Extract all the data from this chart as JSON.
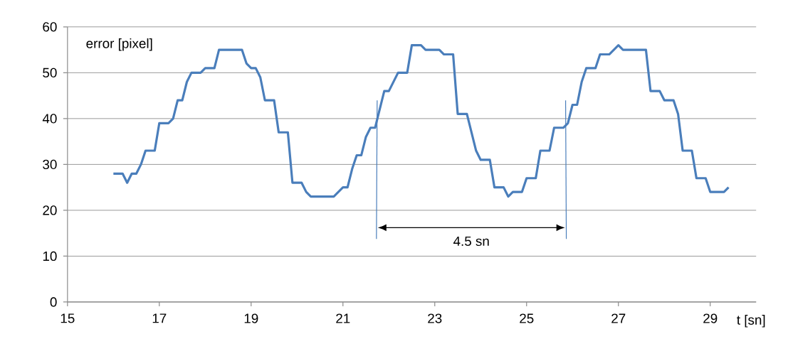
{
  "chart_data": {
    "type": "line",
    "xlabel": "t [sn]",
    "ylabel": "error [pixel]",
    "xlim": [
      15,
      30
    ],
    "xticks": [
      15,
      17,
      19,
      21,
      23,
      25,
      27,
      29
    ],
    "ylim": [
      0,
      60
    ],
    "yticks": [
      0,
      10,
      20,
      30,
      40,
      50,
      60
    ],
    "grid": "y",
    "marker": "none",
    "line_style": "solid",
    "annotations": [
      "4.5 sn"
    ],
    "series": [
      {
        "color": "#4a7ebb",
        "x": [
          16.0,
          16.2,
          16.3,
          16.4,
          16.5,
          16.6,
          16.7,
          16.9,
          17.0,
          17.2,
          17.3,
          17.4,
          17.5,
          17.6,
          17.7,
          17.9,
          18.0,
          18.2,
          18.3,
          18.8,
          18.9,
          19.0,
          19.1,
          19.2,
          19.3,
          19.5,
          19.6,
          19.8,
          19.9,
          20.1,
          20.2,
          20.3,
          20.8,
          21.0,
          21.1,
          21.2,
          21.3,
          21.4,
          21.5,
          21.6,
          21.7,
          21.9,
          22.0,
          22.2,
          22.4,
          22.5,
          22.7,
          22.8,
          23.1,
          23.2,
          23.4,
          23.5,
          23.7,
          23.9,
          24.0,
          24.2,
          24.3,
          24.5,
          24.6,
          24.7,
          24.9,
          25.0,
          25.2,
          25.3,
          25.5,
          25.6,
          25.8,
          25.9,
          26.0,
          26.1,
          26.2,
          26.3,
          26.5,
          26.6,
          26.8,
          27.0,
          27.1,
          27.6,
          27.7,
          27.9,
          28.0,
          28.2,
          28.3,
          28.4,
          28.6,
          28.7,
          28.9,
          29.0,
          29.3,
          29.4
        ],
        "values": [
          28,
          28,
          26,
          28,
          28,
          30,
          33,
          33,
          39,
          39,
          40,
          44,
          44,
          48,
          50,
          50,
          51,
          51,
          55,
          55,
          52,
          51,
          51,
          49,
          44,
          44,
          37,
          37,
          26,
          26,
          24,
          23,
          23,
          25,
          25,
          29,
          32,
          32,
          36,
          38,
          38,
          46,
          46,
          50,
          50,
          56,
          56,
          55,
          55,
          54,
          54,
          41,
          41,
          33,
          31,
          31,
          25,
          25,
          23,
          24,
          24,
          27,
          27,
          33,
          33,
          38,
          38,
          39,
          43,
          43,
          48,
          51,
          51,
          54,
          54,
          56,
          55,
          55,
          46,
          46,
          44,
          44,
          41,
          33,
          33,
          27,
          27,
          24,
          24,
          25
        ]
      }
    ]
  }
}
